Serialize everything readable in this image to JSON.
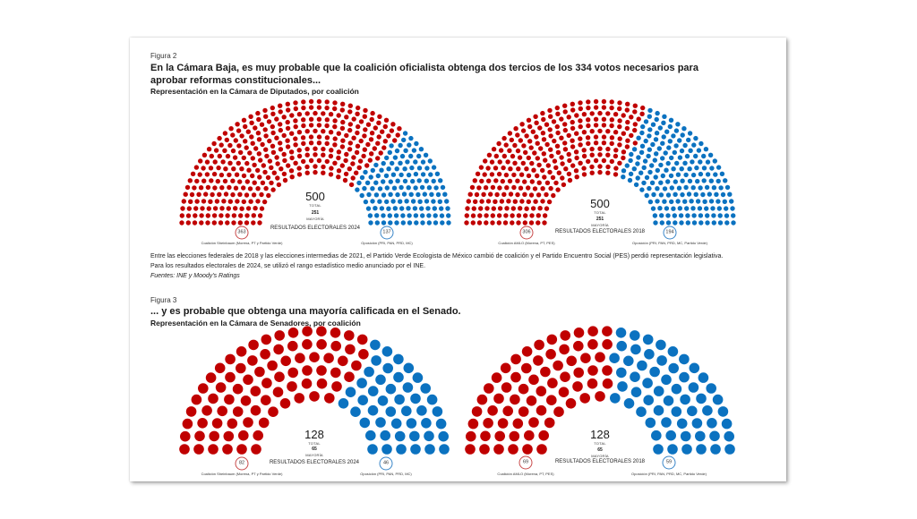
{
  "colors": {
    "government": "#c00000",
    "opposition": "#0b72c0"
  },
  "figure2": {
    "label": "Figura 2",
    "title": "En la Cámara Baja, es muy probable que la coalición oficialista obtenga dos tercios de los 334 votos necesarios para aprobar reformas constitucionales...",
    "subtitle": "Representación en la Cámara de Diputados, por coalición",
    "note": "Entre las elecciones federales de 2018 y las elecciones intermedias de 2021, el Partido Verde Ecologista de México cambió de coalición y el Partido Encuentro Social (PES) perdió representación legislativa. Para los resultados electorales de 2024, se utilizó el rango estadístico medio anunciado por el INE.",
    "source": "Fuentes: INE y Moody's Ratings"
  },
  "figure3": {
    "label": "Figura 3",
    "title": "... y es probable que obtenga una mayoría calificada en el Senado.",
    "subtitle": "Representación en la Cámara de Senadores, por coalición"
  },
  "chart_data": [
    {
      "type": "parliament",
      "chamber": "Diputados",
      "title": "RESULTADOS ELECTORALES 2024",
      "total": 500,
      "total_label": "TOTAL",
      "majority": 251,
      "majority_label": "MAYORÍA",
      "series": [
        {
          "name": "Coalición Sheinbaum (Morena, PT y Partido Verde)",
          "value": 363,
          "color": "#c00000"
        },
        {
          "name": "Oposición (PRI, PAN, PRD, MC)",
          "value": 137,
          "color": "#0b72c0"
        }
      ]
    },
    {
      "type": "parliament",
      "chamber": "Diputados",
      "title": "RESULTADOS ELECTORALES 2018",
      "total": 500,
      "total_label": "TOTAL",
      "majority": 251,
      "majority_label": "MAYORÍA",
      "series": [
        {
          "name": "Coalición AMLO (Morena, PT, PES)",
          "value": 306,
          "color": "#c00000"
        },
        {
          "name": "Oposición (PRI, PAN, PRD, MC, Partido Verde)",
          "value": 194,
          "color": "#0b72c0"
        }
      ]
    },
    {
      "type": "parliament",
      "chamber": "Senadores",
      "title": "RESULTADOS ELECTORALES 2024",
      "total": 128,
      "total_label": "TOTAL",
      "majority": 65,
      "majority_label": "MAYORÍA",
      "series": [
        {
          "name": "Coalición Sheinbaum (Morena, PT y Partido Verde)",
          "value": 82,
          "color": "#c00000"
        },
        {
          "name": "Oposición (PRI, PAN, PRD, MC)",
          "value": 46,
          "color": "#0b72c0"
        }
      ]
    },
    {
      "type": "parliament",
      "chamber": "Senadores",
      "title": "RESULTADOS ELECTORALES 2018",
      "total": 128,
      "total_label": "TOTAL",
      "majority": 65,
      "majority_label": "MAYORÍA",
      "series": [
        {
          "name": "Coalición AMLO (Morena, PT, PES)",
          "value": 69,
          "color": "#c00000"
        },
        {
          "name": "Oposición (PRI, PAN, PRD, MC, Partido Verde)",
          "value": 59,
          "color": "#0b72c0"
        }
      ]
    }
  ]
}
